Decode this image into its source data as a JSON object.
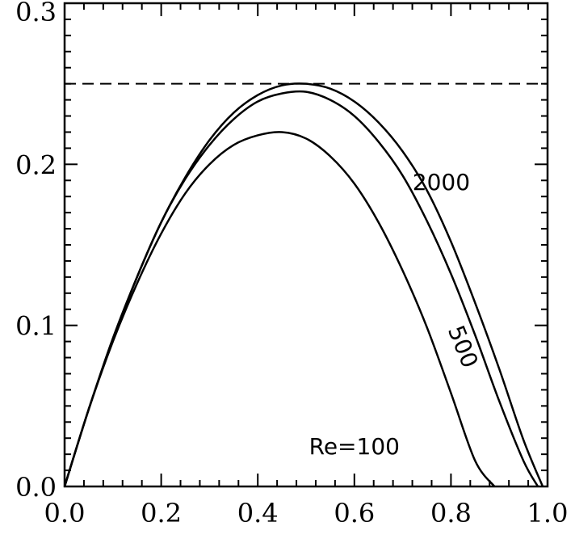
{
  "chart_data": {
    "type": "line",
    "title": "",
    "xlabel": "",
    "ylabel": "",
    "xlim": [
      0.0,
      1.0
    ],
    "ylim": [
      0.0,
      0.3
    ],
    "x_ticks": [
      "0.0",
      "0.2",
      "0.4",
      "0.6",
      "0.8",
      "1.0"
    ],
    "y_ticks": [
      "0.0",
      "0.1",
      "0.2",
      "0.3"
    ],
    "grid": false,
    "legend": "none",
    "reference_line": {
      "y": 0.25,
      "style": "dashed"
    },
    "series": [
      {
        "name": "2000",
        "x": [
          0.0,
          0.05,
          0.1,
          0.15,
          0.2,
          0.25,
          0.3,
          0.35,
          0.4,
          0.45,
          0.5,
          0.55,
          0.6,
          0.65,
          0.7,
          0.75,
          0.8,
          0.85,
          0.9,
          0.95,
          0.99
        ],
        "y": [
          0.0,
          0.048,
          0.092,
          0.13,
          0.164,
          0.192,
          0.215,
          0.232,
          0.243,
          0.249,
          0.25,
          0.247,
          0.239,
          0.226,
          0.208,
          0.184,
          0.152,
          0.114,
          0.073,
          0.029,
          0.0
        ]
      },
      {
        "name": "500",
        "x": [
          0.0,
          0.05,
          0.1,
          0.15,
          0.2,
          0.25,
          0.3,
          0.35,
          0.4,
          0.45,
          0.5,
          0.55,
          0.6,
          0.65,
          0.7,
          0.75,
          0.8,
          0.85,
          0.9,
          0.95,
          0.98
        ],
        "y": [
          0.0,
          0.048,
          0.091,
          0.13,
          0.164,
          0.191,
          0.212,
          0.228,
          0.239,
          0.244,
          0.245,
          0.24,
          0.23,
          0.214,
          0.193,
          0.165,
          0.132,
          0.094,
          0.053,
          0.016,
          0.0
        ]
      },
      {
        "name": "Re=100",
        "x": [
          0.0,
          0.05,
          0.1,
          0.15,
          0.2,
          0.25,
          0.3,
          0.35,
          0.4,
          0.45,
          0.5,
          0.55,
          0.6,
          0.65,
          0.7,
          0.75,
          0.8,
          0.85,
          0.89
        ],
        "y": [
          0.0,
          0.048,
          0.09,
          0.126,
          0.157,
          0.182,
          0.2,
          0.212,
          0.218,
          0.22,
          0.216,
          0.205,
          0.188,
          0.164,
          0.134,
          0.099,
          0.058,
          0.016,
          0.0
        ]
      }
    ],
    "annotations": [
      {
        "text": "2000",
        "x": 0.78,
        "y": 0.184,
        "rotation": 0
      },
      {
        "text": "500",
        "x": 0.81,
        "y": 0.085,
        "rotation": 68
      },
      {
        "text": "Re=100",
        "x": 0.6,
        "y": 0.02,
        "rotation": 0
      }
    ]
  }
}
